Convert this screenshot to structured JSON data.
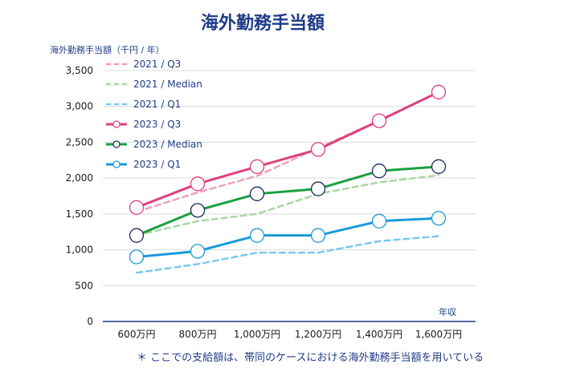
{
  "chart_data": {
    "type": "line",
    "title": "海外勤務手当額",
    "ylabel": "海外勤務手当額（千円 / 年）",
    "xlabel": "年収",
    "categories": [
      "600万円",
      "800万円",
      "1,000万円",
      "1,200万円",
      "1,400万円",
      "1,600万円"
    ],
    "ylim": [
      0,
      3500
    ],
    "yticks": [
      0,
      500,
      1000,
      1500,
      2000,
      2500,
      3000,
      3500
    ],
    "ytick_labels": [
      "0",
      "500",
      "1,000",
      "1,500",
      "2,000",
      "2,500",
      "3,000",
      "3,500"
    ],
    "grid": true,
    "legend_position": "top-left",
    "series": [
      {
        "name": "2021 / Q3",
        "color": "#f0a0b8",
        "style": "dashed",
        "markers": false,
        "values": [
          1530,
          1800,
          2030,
          2420,
          2800,
          3200
        ]
      },
      {
        "name": "2021 / Median",
        "color": "#a8d8a0",
        "style": "dashed",
        "markers": false,
        "values": [
          1200,
          1400,
          1500,
          1780,
          1940,
          2040
        ]
      },
      {
        "name": "2021 / Q1",
        "color": "#7cc8f0",
        "style": "dashed",
        "markers": false,
        "values": [
          680,
          800,
          960,
          960,
          1120,
          1190
        ]
      },
      {
        "name": "2023 / Q3",
        "color": "#e0407e",
        "style": "solid",
        "markers": true,
        "values": [
          1590,
          1920,
          2160,
          2400,
          2800,
          3200
        ]
      },
      {
        "name": "2023 / Median",
        "color": "#1aa040",
        "style": "solid",
        "markers": true,
        "marker_edge": "#1a2a5a",
        "values": [
          1200,
          1550,
          1780,
          1850,
          2100,
          2160
        ]
      },
      {
        "name": "2023 / Q1",
        "color": "#1a9ad8",
        "style": "solid",
        "markers": true,
        "values": [
          900,
          980,
          1200,
          1200,
          1400,
          1440
        ]
      }
    ],
    "note": "＊ ここでの支給額は、帯同のケースにおける海外勤務手当額を用いている"
  }
}
